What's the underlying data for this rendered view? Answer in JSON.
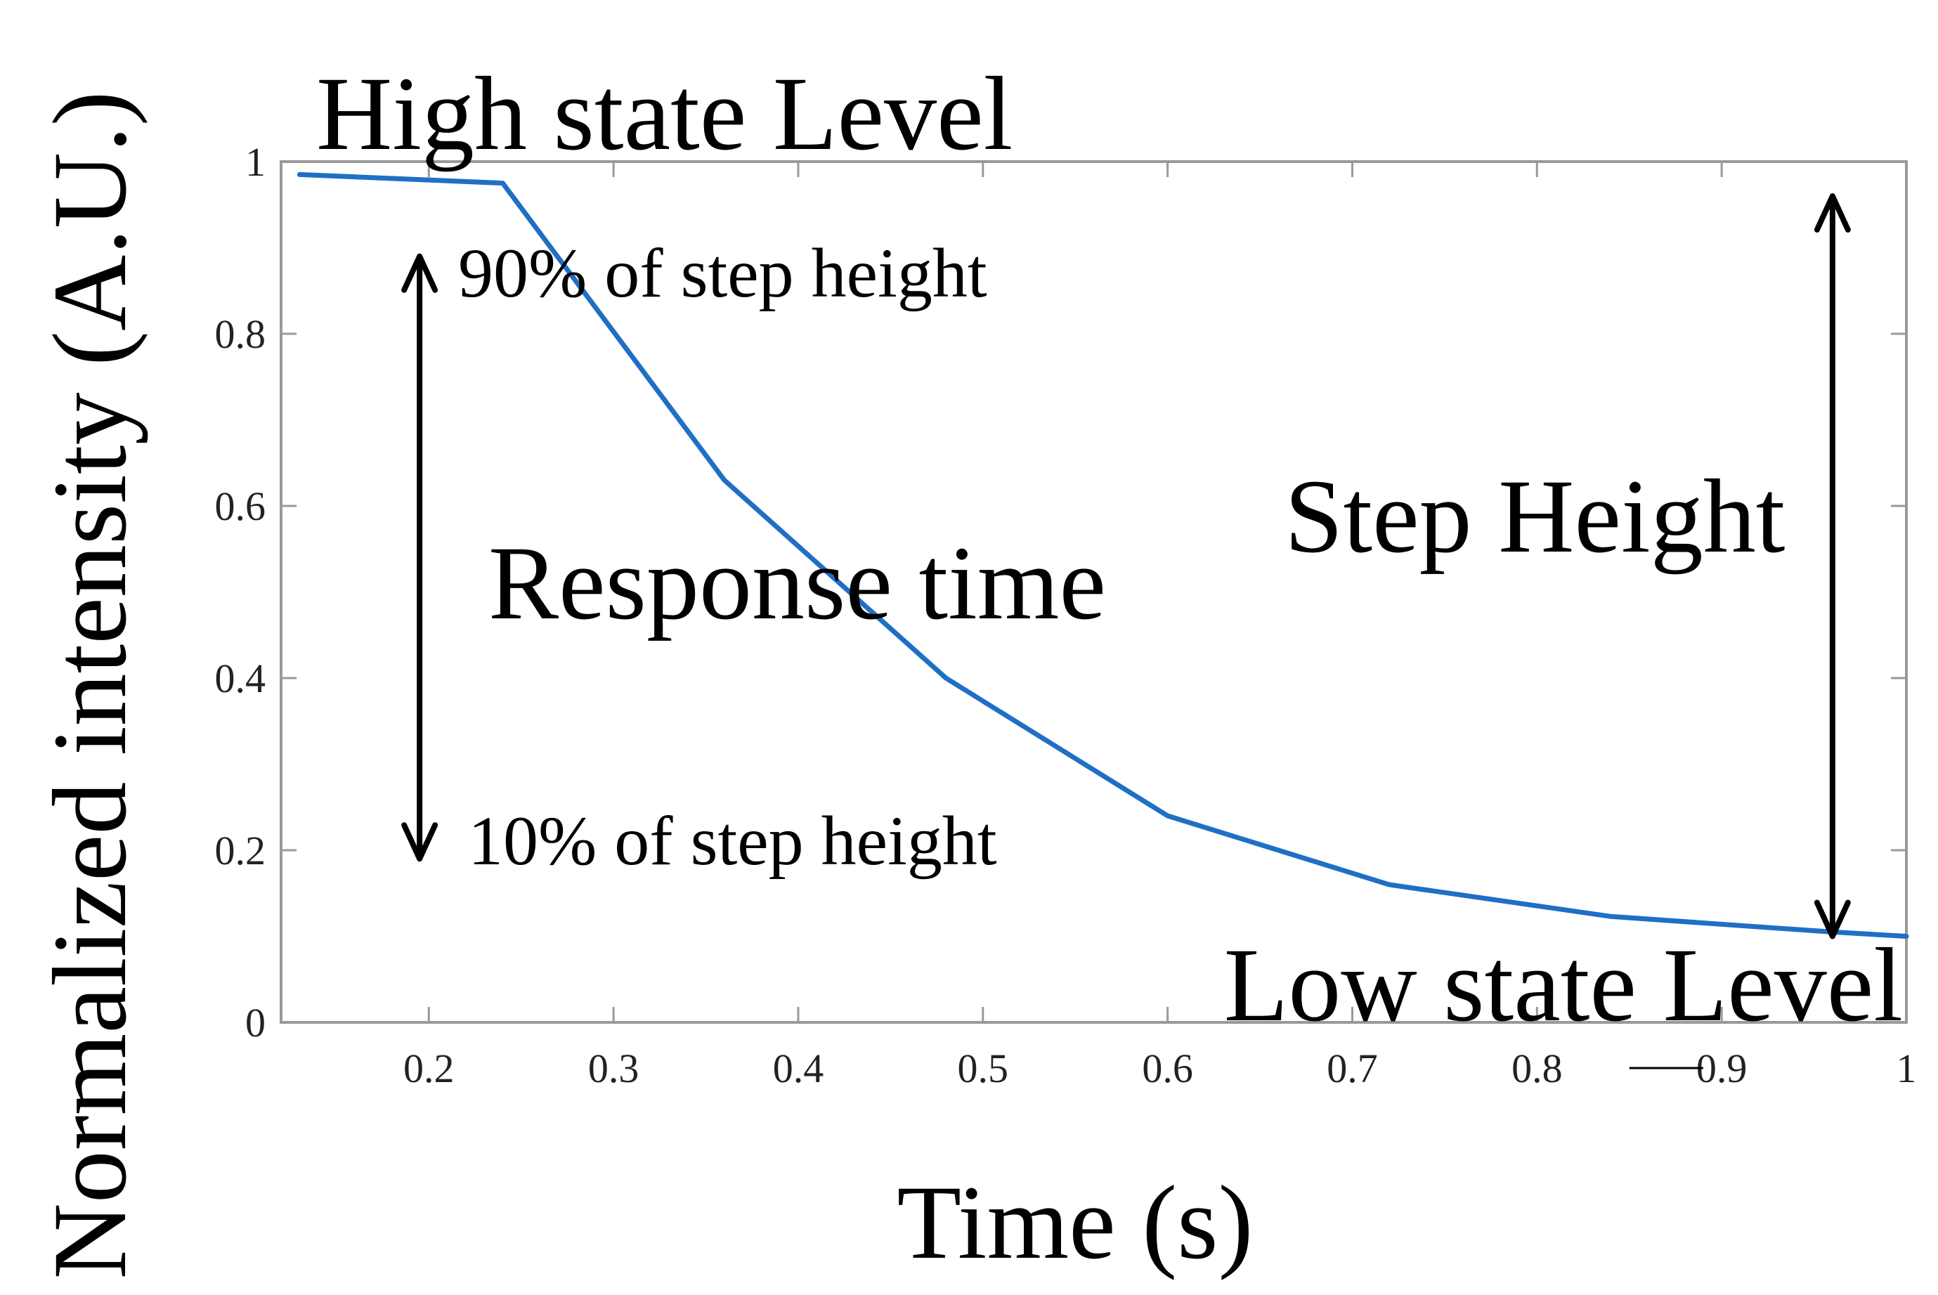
{
  "chart_data": {
    "type": "line",
    "title": "",
    "xlabel": "Time (s)",
    "ylabel": "Normalized intensity (A.U.)",
    "xlim": [
      0.12,
      1.0
    ],
    "ylim": [
      0,
      1
    ],
    "x_ticks": [
      {
        "value": 0.2,
        "label": "0.2"
      },
      {
        "value": 0.3,
        "label": "0.3"
      },
      {
        "value": 0.4,
        "label": "0.4"
      },
      {
        "value": 0.5,
        "label": "0.5"
      },
      {
        "value": 0.6,
        "label": "0.6"
      },
      {
        "value": 0.7,
        "label": "0.7"
      },
      {
        "value": 0.8,
        "label": "0.8"
      },
      {
        "value": 0.9,
        "label": "0.9"
      },
      {
        "value": 1.0,
        "label": "1"
      }
    ],
    "y_ticks": [
      {
        "value": 0,
        "label": "0"
      },
      {
        "value": 0.2,
        "label": "0.2"
      },
      {
        "value": 0.4,
        "label": "0.4"
      },
      {
        "value": 0.6,
        "label": "0.6"
      },
      {
        "value": 0.8,
        "label": "0.8"
      },
      {
        "value": 1.0,
        "label": "1"
      }
    ],
    "grid": false,
    "series": [
      {
        "color": "#1f6fc5",
        "x": [
          0.13,
          0.24,
          0.36,
          0.48,
          0.6,
          0.72,
          0.84,
          0.96,
          1.0
        ],
        "y": [
          0.985,
          0.975,
          0.63,
          0.4,
          0.24,
          0.16,
          0.123,
          0.105,
          0.1
        ]
      }
    ],
    "annotations": {
      "high_state": "High state Level",
      "low_state": "Low state Level",
      "upper_pct": "90% of step height",
      "lower_pct": "10% of step height",
      "response_time": "Response time",
      "step_height": "Step Height"
    },
    "arrows": {
      "response_time": {
        "x": 0.195,
        "y_from": 0.19,
        "y_to": 0.89
      },
      "step_height": {
        "x": 0.96,
        "y_from": 0.1,
        "y_to": 0.96
      }
    },
    "stray_mark": {
      "x_from": 0.85,
      "x_to": 0.89
    }
  },
  "colors": {
    "line": "#1f6fc5",
    "axes": "#999999",
    "arrow": "#000000"
  }
}
